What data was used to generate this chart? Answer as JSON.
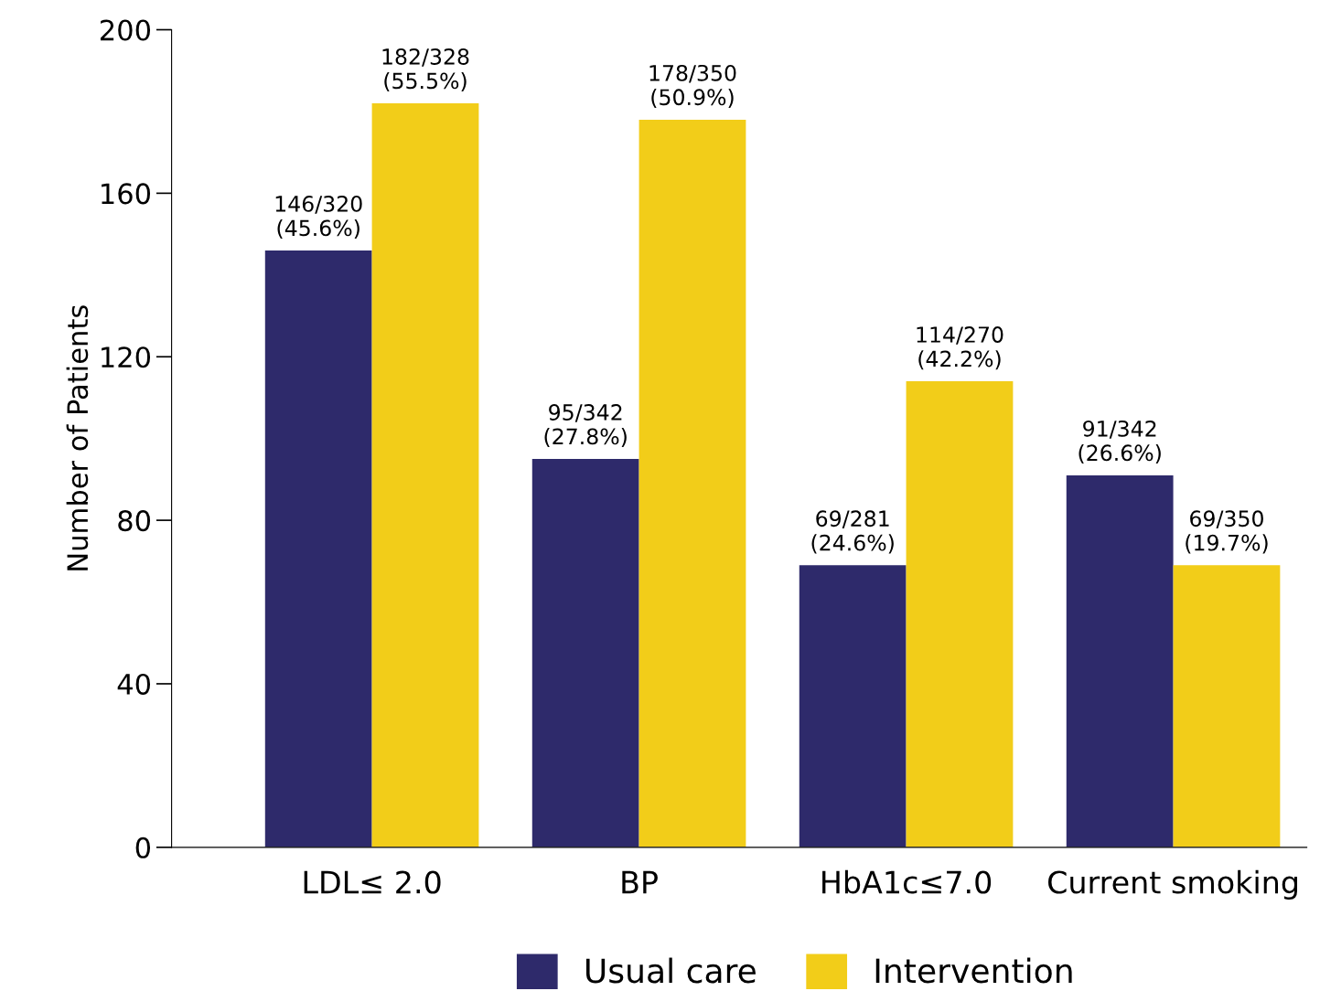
{
  "chart_data": {
    "type": "bar",
    "ylabel": "Number of Patients",
    "categories": [
      "LDL≤ 2.0",
      "BP",
      "HbA1c≤7.0",
      "Current smoking"
    ],
    "series": [
      {
        "name": "Usual care",
        "color": "#2e2a6b",
        "values": [
          146,
          95,
          69,
          91
        ],
        "value_labels": [
          "146/320\n(45.6%)",
          "95/342\n(27.8%)",
          "69/281\n(24.6%)",
          "91/342\n(26.6%)"
        ]
      },
      {
        "name": "Intervention",
        "color": "#f2cd19",
        "values": [
          182,
          178,
          114,
          69
        ],
        "value_labels": [
          "182/328\n(55.5%)",
          "178/350\n(50.9%)",
          "114/270\n(42.2%)",
          "69/350\n(19.7%)"
        ]
      }
    ],
    "ylim": [
      0,
      200
    ],
    "yticks": [
      0,
      40,
      80,
      120,
      160,
      200
    ],
    "grid": false,
    "legend": "bottom"
  }
}
